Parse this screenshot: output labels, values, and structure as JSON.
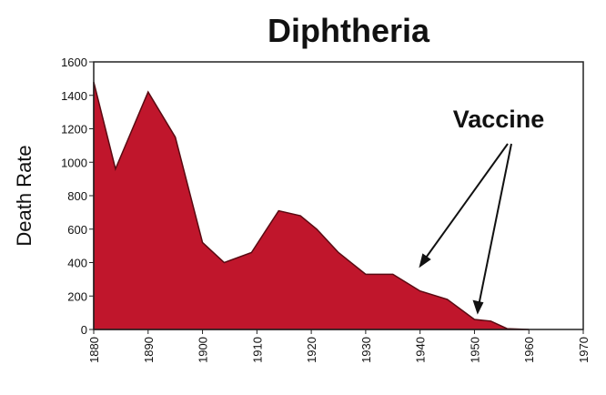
{
  "chart_data": {
    "type": "area",
    "title": "Diphtheria",
    "y_label": "Death Rate",
    "annotation": "Vaccine",
    "x": [
      1880,
      1884,
      1890,
      1895,
      1900,
      1904,
      1909,
      1914,
      1918,
      1921,
      1925,
      1930,
      1935,
      1940,
      1945,
      1950,
      1953,
      1956,
      1960
    ],
    "values": [
      1480,
      960,
      1420,
      1150,
      520,
      400,
      460,
      710,
      680,
      600,
      460,
      330,
      330,
      230,
      180,
      60,
      50,
      5,
      0
    ],
    "color": "#c0162c",
    "xlim": [
      1880,
      1970
    ],
    "xticks": [
      1880,
      1890,
      1900,
      1910,
      1920,
      1930,
      1940,
      1950,
      1960,
      1970
    ],
    "ylim": [
      0,
      1600
    ],
    "yticks": [
      0,
      200,
      400,
      600,
      800,
      1000,
      1200,
      1400,
      1600
    ]
  }
}
